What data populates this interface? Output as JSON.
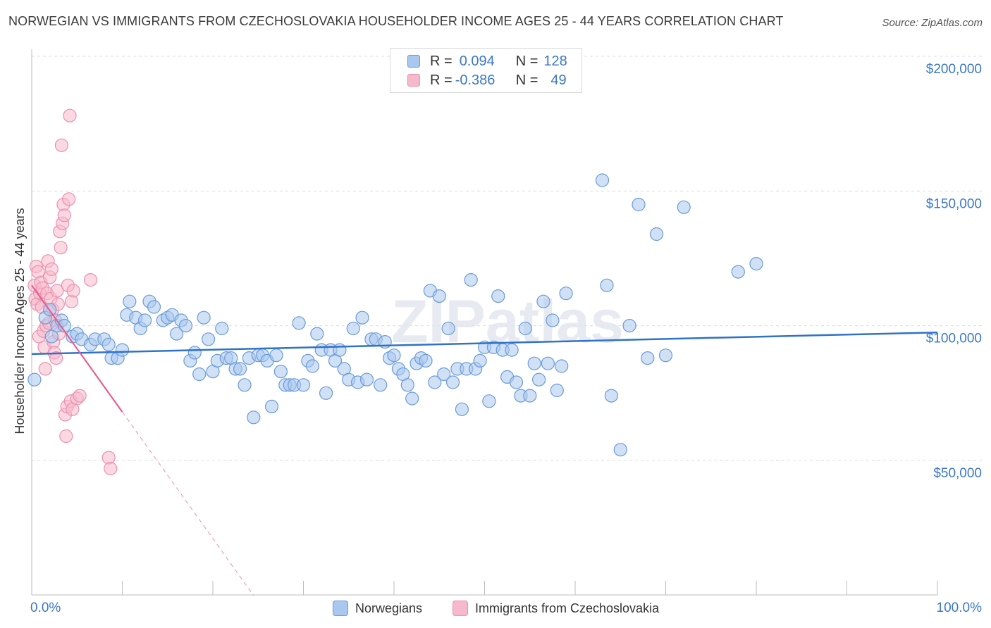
{
  "title": "NORWEGIAN VS IMMIGRANTS FROM CZECHOSLOVAKIA HOUSEHOLDER INCOME AGES 25 - 44 YEARS CORRELATION CHART",
  "source": "Source: ZipAtlas.com",
  "watermark": "ZIPatlas",
  "colors": {
    "blue_fill": "#a9c8ef",
    "blue_stroke": "#6a9ad8",
    "blue_line": "#2f72c9",
    "pink_fill": "#f6b9cc",
    "pink_stroke": "#ec8fae",
    "pink_line": "#e85e8d",
    "axis_label": "#3a78c9",
    "grid": "#dcdcdc"
  },
  "legend_top": {
    "rows": [
      {
        "r_label": "R =",
        "r_value": "0.094",
        "n_label": "N =",
        "n_value": "128"
      },
      {
        "r_label": "R =",
        "r_value": "-0.386",
        "n_label": "N =",
        "n_value": "49"
      }
    ]
  },
  "legend_bottom": {
    "items": [
      {
        "label": "Norwegians"
      },
      {
        "label": "Immigrants from Czechoslovakia"
      }
    ]
  },
  "chart_data": {
    "type": "scatter",
    "title": "NORWEGIAN VS IMMIGRANTS FROM CZECHOSLOVAKIA HOUSEHOLDER INCOME AGES 25 - 44 YEARS CORRELATION CHART",
    "xlabel": "",
    "ylabel": "Householder Income Ages 25 - 44 years",
    "xlim": [
      0,
      100
    ],
    "ylim": [
      0,
      210000
    ],
    "x_tick_labels": [
      "0.0%",
      "100.0%"
    ],
    "y_ticks": [
      50000,
      100000,
      150000,
      200000
    ],
    "y_tick_labels": [
      "$50,000",
      "$100,000",
      "$150,000",
      "$200,000"
    ],
    "grid": true,
    "legend": "top-center",
    "series": [
      {
        "name": "Norwegians",
        "R": 0.094,
        "N": 128,
        "trend": {
          "x": [
            0,
            100
          ],
          "y": [
            89500,
            97500
          ],
          "dashed_after": null
        },
        "points": [
          [
            0.3,
            80000
          ],
          [
            1.5,
            103000
          ],
          [
            2.0,
            106000
          ],
          [
            2.2,
            96000
          ],
          [
            2.8,
            100000
          ],
          [
            3.3,
            102000
          ],
          [
            3.6,
            100000
          ],
          [
            4.5,
            96000
          ],
          [
            5.0,
            97000
          ],
          [
            5.5,
            95000
          ],
          [
            6.5,
            93000
          ],
          [
            7.0,
            95000
          ],
          [
            8.0,
            95000
          ],
          [
            8.5,
            93000
          ],
          [
            8.8,
            88000
          ],
          [
            9.5,
            88000
          ],
          [
            10.0,
            91000
          ],
          [
            10.5,
            104000
          ],
          [
            10.8,
            109000
          ],
          [
            11.5,
            103000
          ],
          [
            12.0,
            99000
          ],
          [
            12.5,
            102000
          ],
          [
            13.0,
            109000
          ],
          [
            13.5,
            107000
          ],
          [
            14.5,
            102000
          ],
          [
            15.0,
            103000
          ],
          [
            15.5,
            104000
          ],
          [
            16.0,
            97000
          ],
          [
            16.5,
            102000
          ],
          [
            17.0,
            100000
          ],
          [
            17.5,
            87000
          ],
          [
            18.0,
            90000
          ],
          [
            18.5,
            82000
          ],
          [
            19.0,
            103000
          ],
          [
            19.5,
            95000
          ],
          [
            20.0,
            83000
          ],
          [
            20.5,
            87000
          ],
          [
            21.0,
            99000
          ],
          [
            21.5,
            88000
          ],
          [
            22.0,
            88000
          ],
          [
            22.5,
            84000
          ],
          [
            23.0,
            84000
          ],
          [
            23.5,
            78000
          ],
          [
            24.0,
            88000
          ],
          [
            24.5,
            66000
          ],
          [
            25.0,
            89000
          ],
          [
            25.5,
            89000
          ],
          [
            26.0,
            87000
          ],
          [
            26.5,
            70000
          ],
          [
            27.0,
            89000
          ],
          [
            27.5,
            83000
          ],
          [
            28.0,
            78000
          ],
          [
            28.5,
            78000
          ],
          [
            29.0,
            78000
          ],
          [
            29.5,
            101000
          ],
          [
            30.0,
            78000
          ],
          [
            30.5,
            87000
          ],
          [
            31.0,
            85000
          ],
          [
            31.5,
            97000
          ],
          [
            32.0,
            91000
          ],
          [
            32.5,
            75000
          ],
          [
            33.0,
            91000
          ],
          [
            33.5,
            87000
          ],
          [
            34.0,
            91000
          ],
          [
            34.5,
            84000
          ],
          [
            35.0,
            80000
          ],
          [
            35.5,
            99000
          ],
          [
            36.0,
            79000
          ],
          [
            36.5,
            103000
          ],
          [
            37.0,
            80000
          ],
          [
            37.5,
            95000
          ],
          [
            38.0,
            95000
          ],
          [
            38.5,
            78000
          ],
          [
            39.0,
            94000
          ],
          [
            39.5,
            88000
          ],
          [
            40.0,
            89000
          ],
          [
            40.5,
            84000
          ],
          [
            41.0,
            82000
          ],
          [
            41.5,
            78000
          ],
          [
            42.0,
            73000
          ],
          [
            42.5,
            86000
          ],
          [
            43.0,
            88000
          ],
          [
            43.5,
            87000
          ],
          [
            44.0,
            113000
          ],
          [
            44.5,
            79000
          ],
          [
            45.0,
            111000
          ],
          [
            45.5,
            82000
          ],
          [
            46.0,
            99000
          ],
          [
            46.5,
            79000
          ],
          [
            47.0,
            84000
          ],
          [
            47.5,
            69000
          ],
          [
            48.0,
            84000
          ],
          [
            48.5,
            117000
          ],
          [
            49.0,
            84000
          ],
          [
            49.5,
            87000
          ],
          [
            50.0,
            92000
          ],
          [
            50.5,
            72000
          ],
          [
            51.0,
            92000
          ],
          [
            51.5,
            111000
          ],
          [
            52.0,
            91000
          ],
          [
            52.5,
            81000
          ],
          [
            53.0,
            91000
          ],
          [
            53.5,
            79000
          ],
          [
            54.0,
            74000
          ],
          [
            54.5,
            99000
          ],
          [
            55.0,
            74000
          ],
          [
            55.5,
            86000
          ],
          [
            56.0,
            80000
          ],
          [
            56.5,
            109000
          ],
          [
            57.0,
            86000
          ],
          [
            57.5,
            102000
          ],
          [
            58.0,
            76000
          ],
          [
            58.5,
            85000
          ],
          [
            59.0,
            112000
          ],
          [
            63.0,
            154000
          ],
          [
            63.5,
            115000
          ],
          [
            64.0,
            74000
          ],
          [
            65.0,
            54000
          ],
          [
            66.0,
            100000
          ],
          [
            67.0,
            145000
          ],
          [
            68.0,
            88000
          ],
          [
            69.0,
            134000
          ],
          [
            70.0,
            89000
          ],
          [
            72.0,
            144000
          ],
          [
            78.0,
            120000
          ],
          [
            80.0,
            123000
          ]
        ]
      },
      {
        "name": "Immigrants from Czechoslovakia",
        "R": -0.386,
        "N": 49,
        "trend": {
          "x": [
            0,
            10
          ],
          "y": [
            115000,
            68000
          ],
          "dashed_after": 24.5
        },
        "points": [
          [
            0.3,
            115000
          ],
          [
            0.4,
            110000
          ],
          [
            0.5,
            122000
          ],
          [
            0.6,
            108000
          ],
          [
            0.7,
            120000
          ],
          [
            0.8,
            96000
          ],
          [
            0.9,
            112000
          ],
          [
            1.0,
            116000
          ],
          [
            1.1,
            107000
          ],
          [
            1.2,
            114000
          ],
          [
            1.3,
            98000
          ],
          [
            1.4,
            92000
          ],
          [
            1.5,
            84000
          ],
          [
            1.6,
            100000
          ],
          [
            1.7,
            112000
          ],
          [
            1.8,
            124000
          ],
          [
            1.9,
            101000
          ],
          [
            2.0,
            118000
          ],
          [
            2.1,
            110000
          ],
          [
            2.2,
            121000
          ],
          [
            2.3,
            106000
          ],
          [
            2.4,
            94000
          ],
          [
            2.5,
            90000
          ],
          [
            2.6,
            102000
          ],
          [
            2.7,
            88000
          ],
          [
            2.8,
            113000
          ],
          [
            2.9,
            108000
          ],
          [
            3.0,
            97000
          ],
          [
            3.1,
            135000
          ],
          [
            3.2,
            129000
          ],
          [
            3.3,
            167000
          ],
          [
            3.4,
            138000
          ],
          [
            3.5,
            145000
          ],
          [
            3.6,
            141000
          ],
          [
            3.7,
            67000
          ],
          [
            3.8,
            59000
          ],
          [
            3.9,
            70000
          ],
          [
            4.0,
            115000
          ],
          [
            4.1,
            147000
          ],
          [
            4.2,
            178000
          ],
          [
            4.3,
            72000
          ],
          [
            4.4,
            109000
          ],
          [
            4.5,
            69000
          ],
          [
            4.6,
            113000
          ],
          [
            5.0,
            73000
          ],
          [
            5.3,
            74000
          ],
          [
            6.5,
            117000
          ],
          [
            8.5,
            51000
          ],
          [
            8.7,
            47000
          ]
        ]
      }
    ]
  }
}
